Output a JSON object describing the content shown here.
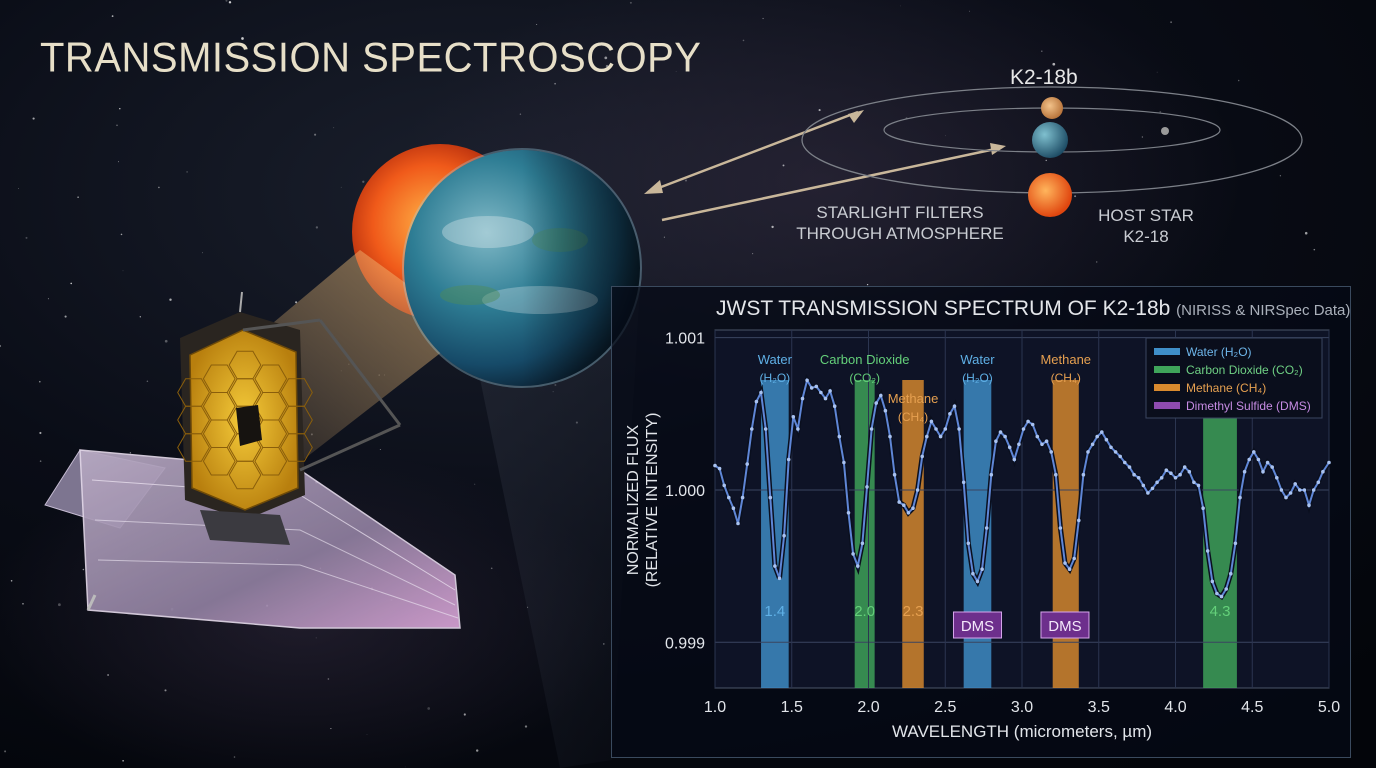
{
  "title": "TRANSMISSION SPECTROSCOPY",
  "diagram": {
    "planet_name": "K2-18b",
    "starlight_label_1": "STARLIGHT FILTERS",
    "starlight_label_2": "THROUGH ATMOSPHERE",
    "host_star_label_1": "HOST STAR",
    "host_star_label_2": "K2-18"
  },
  "colors": {
    "water": "#3f8fc9",
    "co2": "#3fa55a",
    "methane": "#d98a2e",
    "dms": "#8e4bb0",
    "line": "#5f86d6"
  },
  "chart_data": {
    "type": "line",
    "title": "JWST TRANSMISSION SPECTRUM OF K2-18b",
    "subtitle": "(NIRISS & NIRSpec Data)",
    "xlabel": "WAVELENGTH (micrometers, µm)",
    "ylabel_1": "NORMALIZED FLUX",
    "ylabel_2": "(RELATIVE INTENSITY)",
    "xlim": [
      1.0,
      5.0
    ],
    "ylim": [
      0.9987,
      1.00105
    ],
    "xticks": [
      "1.0",
      "1.5",
      "2.0",
      "2.5",
      "3.0",
      "3.5",
      "4.0",
      "4.5",
      "5.0"
    ],
    "yticks": [
      {
        "v": 1.001,
        "label": "1.001"
      },
      {
        "v": 1.0,
        "label": "1.000"
      },
      {
        "v": 0.999,
        "label": "0.999"
      }
    ],
    "grid": true,
    "legend_position": "top-right",
    "legend": [
      {
        "label": "Water (H₂O)",
        "color": "#3f8fc9"
      },
      {
        "label": "Carbon Dioxide (CO₂)",
        "color": "#3fa55a"
      },
      {
        "label": "Methane (CH₄)",
        "color": "#d98a2e"
      },
      {
        "label": "Dimethyl Sulfide (DMS)",
        "color": "#8e4bb0"
      }
    ],
    "bands": [
      {
        "x0": 1.3,
        "x1": 1.48,
        "color": "#3f8fc9",
        "name": "Water",
        "formula": "(H₂O)",
        "value_label": "1.4",
        "label_tier": 0
      },
      {
        "x0": 1.91,
        "x1": 2.04,
        "color": "#3fa55a",
        "name": "Carbon Dioxide",
        "formula": "(CO₂)",
        "value_label": "2.0",
        "label_tier": 0
      },
      {
        "x0": 2.22,
        "x1": 2.36,
        "color": "#d98a2e",
        "name": "Methane",
        "formula": "(CH₄)",
        "value_label": "2.3",
        "label_tier": 1
      },
      {
        "x0": 2.62,
        "x1": 2.8,
        "color": "#3f8fc9",
        "name": "Water",
        "formula": "(H₂O)",
        "value_label": "",
        "label_tier": 0
      },
      {
        "x0": 3.2,
        "x1": 3.37,
        "color": "#d98a2e",
        "name": "Methane",
        "formula": "(CH₄)",
        "value_label": "",
        "label_tier": 0
      },
      {
        "x0": 4.18,
        "x1": 4.4,
        "color": "#3fa55a",
        "name": "",
        "formula": "",
        "value_label": "4.3",
        "label_tier": 0
      }
    ],
    "dms_markers": [
      {
        "x": 2.71,
        "y": 0.99923,
        "label": "DMS"
      },
      {
        "x": 3.28,
        "y": 0.99923,
        "label": "DMS"
      }
    ],
    "series": [
      {
        "x": [
          1.0,
          1.03,
          1.06,
          1.09,
          1.12,
          1.15,
          1.18,
          1.21,
          1.24,
          1.27,
          1.3,
          1.33,
          1.36,
          1.39,
          1.42,
          1.45,
          1.48,
          1.51,
          1.54,
          1.57,
          1.6,
          1.63,
          1.66,
          1.69,
          1.72,
          1.75,
          1.78,
          1.81,
          1.84,
          1.87,
          1.9,
          1.93,
          1.96,
          1.99,
          2.02,
          2.05,
          2.08,
          2.11,
          2.14,
          2.17,
          2.2,
          2.23,
          2.26,
          2.29,
          2.32,
          2.35,
          2.38,
          2.41,
          2.44,
          2.47,
          2.5,
          2.53,
          2.56,
          2.59,
          2.62,
          2.65,
          2.68,
          2.71,
          2.74,
          2.77,
          2.8,
          2.83,
          2.86,
          2.89,
          2.92,
          2.95,
          2.98,
          3.01,
          3.04,
          3.07,
          3.1,
          3.13,
          3.16,
          3.19,
          3.22,
          3.25,
          3.28,
          3.31,
          3.34,
          3.37,
          3.4,
          3.43,
          3.46,
          3.49,
          3.52,
          3.55,
          3.58,
          3.61,
          3.64,
          3.67,
          3.7,
          3.73,
          3.76,
          3.79,
          3.82,
          3.85,
          3.88,
          3.91,
          3.94,
          3.97,
          4.0,
          4.03,
          4.06,
          4.09,
          4.12,
          4.15,
          4.18,
          4.21,
          4.24,
          4.27,
          4.3,
          4.33,
          4.36,
          4.39,
          4.42,
          4.45,
          4.48,
          4.51,
          4.54,
          4.57,
          4.6,
          4.63,
          4.66,
          4.69,
          4.72,
          4.75,
          4.78,
          4.81,
          4.84,
          4.87,
          4.9,
          4.93,
          4.96,
          5.0
        ],
        "values": [
          1.00016,
          1.00014,
          1.00003,
          0.99995,
          0.99988,
          0.99978,
          0.99995,
          1.00017,
          1.0004,
          1.00058,
          1.00064,
          1.0004,
          0.99995,
          0.9995,
          0.99942,
          0.9997,
          1.0002,
          1.00048,
          1.0004,
          1.0006,
          1.00072,
          1.00067,
          1.00068,
          1.00064,
          1.0006,
          1.00065,
          1.00055,
          1.00035,
          1.00018,
          0.99985,
          0.99958,
          0.9995,
          0.99965,
          1.00002,
          1.0004,
          1.00057,
          1.00062,
          1.00052,
          1.00035,
          1.0001,
          0.99992,
          0.9999,
          0.99985,
          0.99988,
          1.0,
          1.00022,
          1.00035,
          1.00045,
          1.0004,
          1.00035,
          1.0004,
          1.0005,
          1.00055,
          1.0004,
          1.00005,
          0.99965,
          0.99945,
          0.9994,
          0.99948,
          0.99975,
          1.0001,
          1.00032,
          1.00038,
          1.00035,
          1.00028,
          1.0002,
          1.0003,
          1.0004,
          1.00045,
          1.00043,
          1.00035,
          1.0003,
          1.00032,
          1.00025,
          1.0001,
          0.99975,
          0.99952,
          0.99948,
          0.99955,
          0.9998,
          1.0001,
          1.00025,
          1.0003,
          1.00035,
          1.00038,
          1.00033,
          1.00028,
          1.00025,
          1.00022,
          1.00018,
          1.00015,
          1.0001,
          1.00008,
          1.00003,
          0.99998,
          1.00001,
          1.00005,
          1.00008,
          1.00013,
          1.00011,
          1.00008,
          1.0001,
          1.00015,
          1.00012,
          1.00005,
          1.00003,
          0.99988,
          0.9996,
          0.9994,
          0.99932,
          0.9993,
          0.99935,
          0.99945,
          0.99965,
          0.99995,
          1.00012,
          1.0002,
          1.00025,
          1.0002,
          1.00012,
          1.00018,
          1.00015,
          1.00008,
          1.0,
          0.99995,
          0.99998,
          1.00004,
          1.0,
          1.0,
          0.9999,
          1.0,
          1.00005,
          1.00012,
          1.00018
        ],
        "color": "#5f86d6"
      }
    ]
  }
}
